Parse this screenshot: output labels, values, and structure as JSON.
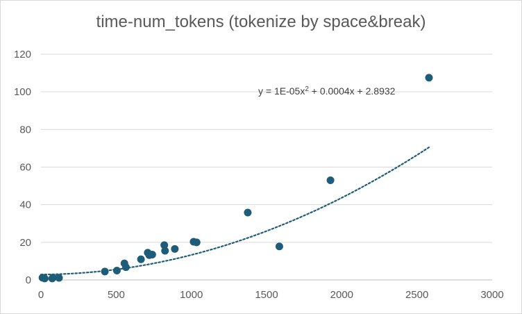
{
  "chart_data": {
    "type": "scatter",
    "title": "time-num_tokens (tokenize by space&break)",
    "xlabel": "",
    "ylabel": "",
    "xlim": [
      0,
      3000
    ],
    "ylim": [
      0,
      120
    ],
    "xticks": [
      0,
      500,
      1000,
      1500,
      2000,
      2500,
      3000
    ],
    "yticks": [
      0,
      20,
      40,
      60,
      80,
      100,
      120
    ],
    "grid": "horizontal",
    "legend": "none",
    "series": [
      {
        "points": [
          {
            "x": 10,
            "y": 1.2
          },
          {
            "x": 25,
            "y": 0.8
          },
          {
            "x": 75,
            "y": 0.8
          },
          {
            "x": 80,
            "y": 1.3
          },
          {
            "x": 120,
            "y": 1.1
          },
          {
            "x": 425,
            "y": 4.5
          },
          {
            "x": 505,
            "y": 5.0
          },
          {
            "x": 555,
            "y": 8.8
          },
          {
            "x": 565,
            "y": 6.8
          },
          {
            "x": 665,
            "y": 11.0
          },
          {
            "x": 710,
            "y": 14.5
          },
          {
            "x": 720,
            "y": 13.2
          },
          {
            "x": 740,
            "y": 13.5
          },
          {
            "x": 820,
            "y": 18.5
          },
          {
            "x": 825,
            "y": 15.5
          },
          {
            "x": 890,
            "y": 16.5
          },
          {
            "x": 1015,
            "y": 20.3
          },
          {
            "x": 1035,
            "y": 20.0
          },
          {
            "x": 1375,
            "y": 35.8
          },
          {
            "x": 1585,
            "y": 17.8
          },
          {
            "x": 1925,
            "y": 53.0
          },
          {
            "x": 2580,
            "y": 107.5
          }
        ]
      }
    ],
    "trendline": {
      "type": "polynomial",
      "order": 2,
      "coefficients": {
        "a": 1e-05,
        "b": 0.0004,
        "c": 2.8932
      },
      "x_range": [
        0,
        2580
      ],
      "equation_main": "y = 1E-05x",
      "equation_sup": "2",
      "equation_rest": " + 0.0004x + 2.8932"
    },
    "colors": {
      "marker": "#1f5c7a",
      "trendline": "#1f5c7a",
      "grid": "#d9d9d9",
      "axis": "#bfbfbf"
    }
  }
}
